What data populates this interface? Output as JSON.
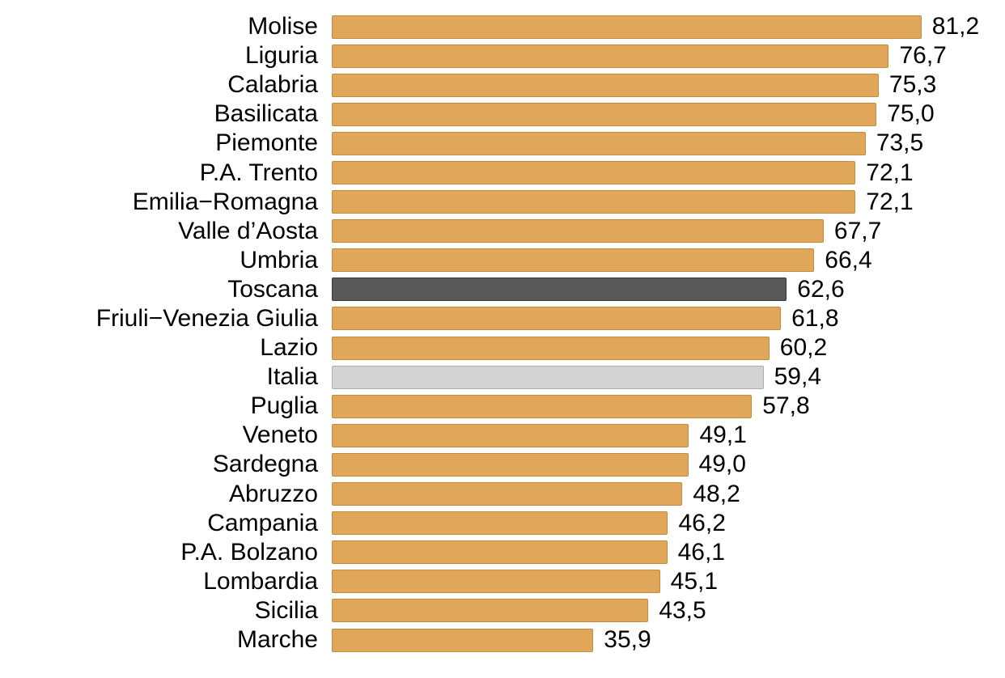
{
  "chart_data": {
    "type": "bar",
    "orientation": "horizontal",
    "title": "",
    "xlabel": "",
    "ylabel": "",
    "grid": false,
    "legend": false,
    "xlim": [
      0,
      93
    ],
    "decimal_separator": ",",
    "categories": [
      "Molise",
      "Liguria",
      "Calabria",
      "Basilicata",
      "Piemonte",
      "P.A. Trento",
      "Emilia−Romagna",
      "Valle d’Aosta",
      "Umbria",
      "Toscana",
      "Friuli−Venezia Giulia",
      "Lazio",
      "Italia",
      "Puglia",
      "Veneto",
      "Sardegna",
      "Abruzzo",
      "Campania",
      "P.A. Bolzano",
      "Lombardia",
      "Sicilia",
      "Marche"
    ],
    "values": [
      81.2,
      76.7,
      75.3,
      75.0,
      73.5,
      72.1,
      72.1,
      67.7,
      66.4,
      62.6,
      61.8,
      60.2,
      59.4,
      57.8,
      49.1,
      49.0,
      48.2,
      46.2,
      46.1,
      45.1,
      43.5,
      35.9
    ],
    "value_labels": [
      "81,2",
      "76,7",
      "75,3",
      "75,0",
      "73,5",
      "72,1",
      "72,1",
      "67,7",
      "66,4",
      "62,6",
      "61,8",
      "60,2",
      "59,4",
      "57,8",
      "49,1",
      "49,0",
      "48,2",
      "46,2",
      "46,1",
      "45,1",
      "43,5",
      "35,9"
    ],
    "highlighted_category": "Toscana",
    "reference_category": "Italia",
    "colors": {
      "bar": "#E0A75A",
      "bar_border": "#C08C3E",
      "highlight": "#595959",
      "highlight_border": "#3A3A3A",
      "reference": "#D3D3D3",
      "reference_border": "#ADADAD",
      "label_text": "#000000",
      "background": "#FFFFFF"
    }
  }
}
